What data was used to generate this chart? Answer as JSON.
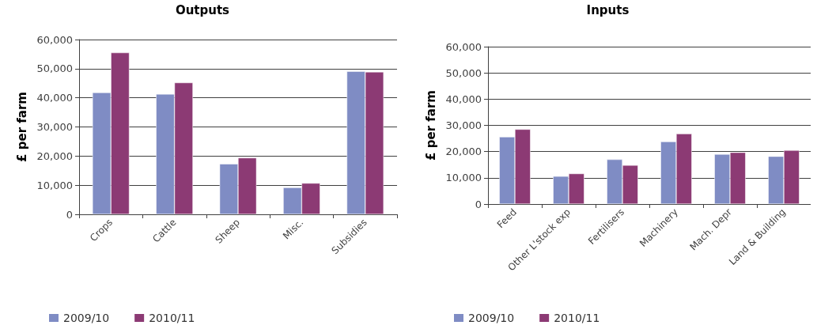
{
  "chart_data": [
    {
      "type": "bar",
      "title": "Outputs",
      "ylabel": "£ per farm",
      "categories": [
        "Crops",
        "Cattle",
        "Sheep",
        "Misc.",
        "Subsidies"
      ],
      "series": [
        {
          "name": "2009/10",
          "color": "#7f8cc4",
          "values": [
            41800,
            41300,
            17300,
            9200,
            49100
          ]
        },
        {
          "name": "2010/11",
          "color": "#8c3a74",
          "values": [
            55500,
            45200,
            19400,
            10700,
            48900
          ]
        }
      ],
      "ylim": [
        0,
        60000
      ],
      "yticks": [
        {
          "value": 0,
          "label": "0"
        },
        {
          "value": 10000,
          "label": "10,000"
        },
        {
          "value": 20000,
          "label": "20,000"
        },
        {
          "value": 30000,
          "label": "30,000"
        },
        {
          "value": 40000,
          "label": "40,000"
        },
        {
          "value": 50000,
          "label": "50,000"
        },
        {
          "value": 60000,
          "label": "60,000"
        }
      ],
      "grid": "y",
      "legend": "bottom left"
    },
    {
      "type": "bar",
      "title": "Inputs",
      "ylabel": "£ per farm",
      "categories": [
        "Feed",
        "Other L'stock exp",
        "Fertilisers",
        "Machinery",
        "Mach. Depr",
        "Land & Building"
      ],
      "series": [
        {
          "name": "2009/10",
          "color": "#7f8cc4",
          "values": [
            25600,
            10600,
            17000,
            23800,
            19000,
            18200
          ]
        },
        {
          "name": "2010/11",
          "color": "#8c3a74",
          "values": [
            28500,
            11600,
            14800,
            26800,
            19700,
            20500
          ]
        }
      ],
      "ylim": [
        0,
        60000
      ],
      "yticks": [
        {
          "value": 0,
          "label": "0"
        },
        {
          "value": 10000,
          "label": "10,000"
        },
        {
          "value": 20000,
          "label": "20,000"
        },
        {
          "value": 30000,
          "label": "30,000"
        },
        {
          "value": 40000,
          "label": "40,000"
        },
        {
          "value": 50000,
          "label": "50,000"
        },
        {
          "value": 60000,
          "label": "60,000"
        }
      ],
      "grid": "y",
      "legend": "bottom left"
    }
  ]
}
